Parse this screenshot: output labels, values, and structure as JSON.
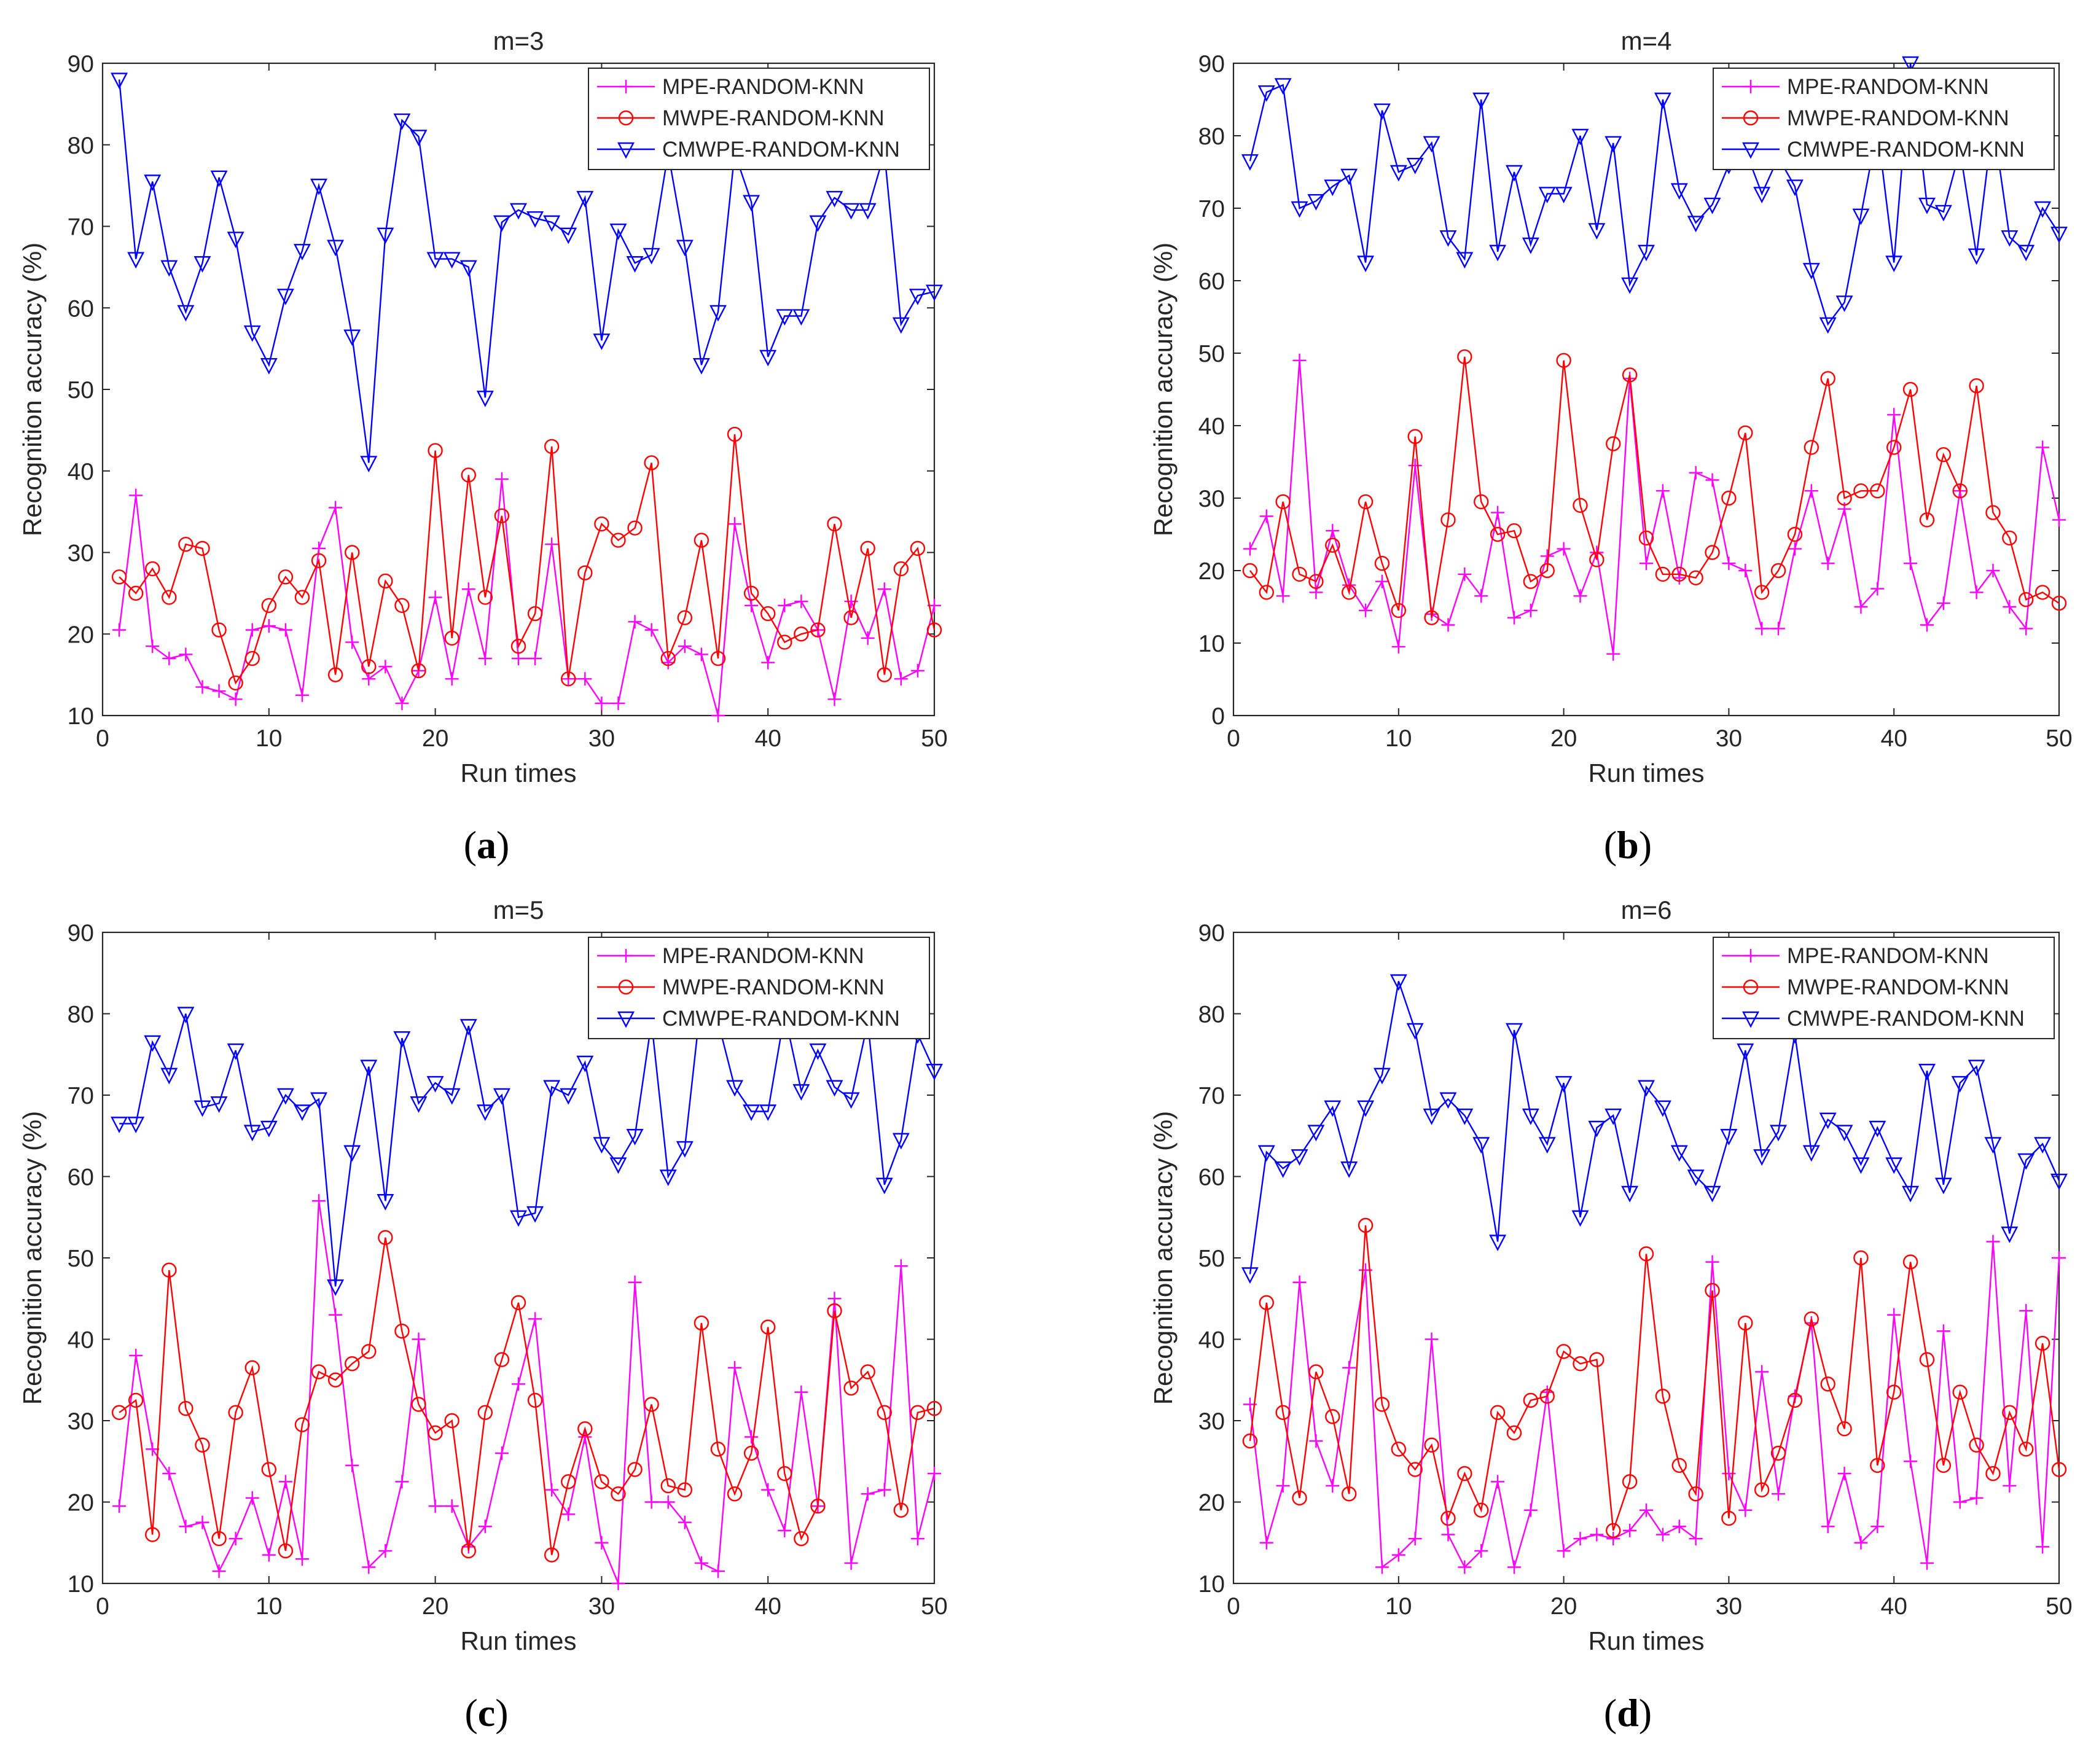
{
  "colors": {
    "MPE": "#ff00ff",
    "MWPE": "#ff0000",
    "CMWPE": "#0000ff",
    "axis": "#262626"
  },
  "chart_data": [
    {
      "type": "line",
      "title": "m=3",
      "caption": "a",
      "xlabel": "Run times",
      "ylabel": "Recognition accuracy (%)",
      "xlim": [
        0,
        50
      ],
      "ylim": [
        10,
        90
      ],
      "xticks": [
        "0",
        "10",
        "20",
        "30",
        "40",
        "50"
      ],
      "yticks": [
        "10",
        "20",
        "30",
        "40",
        "50",
        "60",
        "70",
        "80",
        "90"
      ],
      "legend": "top-right",
      "x": [
        1,
        2,
        3,
        4,
        5,
        6,
        7,
        8,
        9,
        10,
        11,
        12,
        13,
        14,
        15,
        16,
        17,
        18,
        19,
        20,
        21,
        22,
        23,
        24,
        25,
        26,
        27,
        28,
        29,
        30,
        31,
        32,
        33,
        34,
        35,
        36,
        37,
        38,
        39,
        40,
        41,
        42,
        43,
        44,
        45,
        46,
        47,
        48,
        49,
        50
      ],
      "series": [
        {
          "name": "MPE-RANDOM-KNN",
          "marker": "plus",
          "color": "#ff00ff",
          "values": [
            20.5,
            37,
            18.5,
            17,
            17.5,
            13.5,
            13,
            12,
            20.5,
            21,
            20.5,
            12.5,
            30.5,
            35.5,
            19,
            14.5,
            16,
            11.5,
            15.5,
            24.5,
            14.5,
            25.5,
            17,
            39,
            17,
            17,
            31,
            14.5,
            14.5,
            11.5,
            11.5,
            21.5,
            20.5,
            16.5,
            18.5,
            17.5,
            10,
            33.5,
            23.5,
            16.5,
            23.5,
            24,
            20.5,
            12,
            24,
            19.5,
            25.5,
            14.5,
            15.5,
            23.5
          ]
        },
        {
          "name": "MWPE-RANDOM-KNN",
          "marker": "circle",
          "color": "#ff0000",
          "values": [
            27,
            25,
            28,
            24.5,
            31,
            30.5,
            20.5,
            14,
            17,
            23.5,
            27,
            24.5,
            29,
            15,
            30,
            16,
            26.5,
            23.5,
            15.5,
            42.5,
            19.5,
            39.5,
            24.5,
            34.5,
            18.5,
            22.5,
            43,
            14.5,
            27.5,
            33.5,
            31.5,
            33,
            41,
            17,
            22,
            31.5,
            17,
            44.5,
            25,
            22.5,
            19,
            20,
            20.5,
            33.5,
            22,
            30.5,
            15,
            28,
            30.5,
            20.5
          ]
        },
        {
          "name": "CMWPE-RANDOM-KNN",
          "marker": "triangle-down",
          "color": "#0000ff",
          "values": [
            88,
            66,
            75.5,
            65,
            59.5,
            65.5,
            76,
            68.5,
            57,
            53,
            61.5,
            67,
            75,
            67.5,
            56.5,
            41,
            69,
            83,
            81,
            66,
            66,
            65,
            49,
            70.5,
            72,
            71,
            70.5,
            69,
            73.5,
            56,
            69.5,
            65.5,
            66.5,
            79,
            67.5,
            53,
            59.5,
            79,
            73,
            54,
            59,
            59,
            70.5,
            73.5,
            72,
            72,
            79,
            58,
            61.5,
            62
          ]
        }
      ]
    },
    {
      "type": "line",
      "title": "m=4",
      "caption": "b",
      "xlabel": "Run times",
      "ylabel": "Recognition accuracy (%)",
      "xlim": [
        0,
        50
      ],
      "ylim": [
        0,
        90
      ],
      "xticks": [
        "0",
        "10",
        "20",
        "30",
        "40",
        "50"
      ],
      "yticks": [
        "0",
        "10",
        "20",
        "30",
        "40",
        "50",
        "60",
        "70",
        "80",
        "90"
      ],
      "legend": "top-right",
      "x": [
        1,
        2,
        3,
        4,
        5,
        6,
        7,
        8,
        9,
        10,
        11,
        12,
        13,
        14,
        15,
        16,
        17,
        18,
        19,
        20,
        21,
        22,
        23,
        24,
        25,
        26,
        27,
        28,
        29,
        30,
        31,
        32,
        33,
        34,
        35,
        36,
        37,
        38,
        39,
        40,
        41,
        42,
        43,
        44,
        45,
        46,
        47,
        48,
        49,
        50
      ],
      "series": [
        {
          "name": "MPE-RANDOM-KNN",
          "marker": "plus",
          "color": "#ff00ff",
          "values": [
            23,
            27.5,
            16.5,
            49,
            17,
            25.5,
            18,
            14.5,
            18.5,
            9.5,
            34.5,
            14,
            12.5,
            19.5,
            16.5,
            28,
            13.5,
            14.5,
            22,
            23,
            16.5,
            22.5,
            8.5,
            46.5,
            21,
            31,
            19,
            33.5,
            32.5,
            21,
            20,
            12,
            12,
            23,
            31,
            21,
            28.5,
            15,
            17.5,
            41.5,
            21,
            12.5,
            15.5,
            31,
            17,
            20,
            15,
            12,
            37,
            27
          ]
        },
        {
          "name": "MWPE-RANDOM-KNN",
          "marker": "circle",
          "color": "#ff0000",
          "values": [
            20,
            17,
            29.5,
            19.5,
            18.5,
            23.5,
            17,
            29.5,
            21,
            14.5,
            38.5,
            13.5,
            27,
            49.5,
            29.5,
            25,
            25.5,
            18.5,
            20,
            49,
            29,
            21.5,
            37.5,
            47,
            24.5,
            19.5,
            19.5,
            19,
            22.5,
            30,
            39,
            17,
            20,
            25,
            37,
            46.5,
            30,
            31,
            31,
            37,
            45,
            27,
            36,
            31,
            45.5,
            28,
            24.5,
            16,
            17,
            15.5
          ]
        },
        {
          "name": "CMWPE-RANDOM-KNN",
          "marker": "triangle-down",
          "color": "#0000ff",
          "values": [
            76.5,
            86,
            87,
            70,
            71,
            73,
            74.5,
            62.5,
            83.5,
            75,
            76,
            79,
            66,
            63,
            85,
            64,
            75,
            65,
            72,
            72,
            80,
            67,
            79,
            59.5,
            64,
            85,
            72.5,
            68,
            70.5,
            76,
            78,
            72,
            77,
            73,
            61.5,
            54,
            57,
            69,
            81,
            62.5,
            90,
            70.5,
            69.5,
            78,
            63.5,
            82,
            66,
            64,
            70,
            66.5
          ]
        }
      ]
    },
    {
      "type": "line",
      "title": "m=5",
      "caption": "c",
      "xlabel": "Run times",
      "ylabel": "Recognition accuracy (%)",
      "xlim": [
        0,
        50
      ],
      "ylim": [
        10,
        90
      ],
      "xticks": [
        "0",
        "10",
        "20",
        "30",
        "40",
        "50"
      ],
      "yticks": [
        "10",
        "20",
        "30",
        "40",
        "50",
        "60",
        "70",
        "80",
        "90"
      ],
      "legend": "top-right",
      "x": [
        1,
        2,
        3,
        4,
        5,
        6,
        7,
        8,
        9,
        10,
        11,
        12,
        13,
        14,
        15,
        16,
        17,
        18,
        19,
        20,
        21,
        22,
        23,
        24,
        25,
        26,
        27,
        28,
        29,
        30,
        31,
        32,
        33,
        34,
        35,
        36,
        37,
        38,
        39,
        40,
        41,
        42,
        43,
        44,
        45,
        46,
        47,
        48,
        49,
        50
      ],
      "series": [
        {
          "name": "MPE-RANDOM-KNN",
          "marker": "plus",
          "color": "#ff00ff",
          "values": [
            19.5,
            38,
            26.5,
            23.5,
            17,
            17.5,
            11.5,
            15.5,
            20.5,
            13.5,
            22.5,
            13,
            57,
            43,
            24.5,
            12,
            14,
            22.5,
            40,
            19.5,
            19.5,
            14.5,
            17,
            26,
            34.5,
            42.5,
            21.5,
            18.5,
            28,
            15,
            10,
            47,
            20,
            20,
            17.5,
            12.5,
            11.5,
            36.5,
            28,
            21.5,
            16.5,
            33.5,
            19.5,
            45,
            12.5,
            21,
            21.5,
            49,
            15.5,
            23.5
          ]
        },
        {
          "name": "MWPE-RANDOM-KNN",
          "marker": "circle",
          "color": "#ff0000",
          "values": [
            31,
            32.5,
            16,
            48.5,
            31.5,
            27,
            15.5,
            31,
            36.5,
            24,
            14,
            29.5,
            36,
            35,
            37,
            38.5,
            52.5,
            41,
            32,
            28.5,
            30,
            14,
            31,
            37.5,
            44.5,
            32.5,
            13.5,
            22.5,
            29,
            22.5,
            21,
            24,
            32,
            22,
            21.5,
            42,
            26.5,
            21,
            26,
            41.5,
            23.5,
            15.5,
            19.5,
            43.5,
            34,
            36,
            31,
            19,
            31,
            31.5
          ]
        },
        {
          "name": "CMWPE-RANDOM-KNN",
          "marker": "triangle-down",
          "color": "#0000ff",
          "values": [
            66.5,
            66.5,
            76.5,
            72.5,
            80,
            68.5,
            69,
            75.5,
            65.5,
            66,
            70,
            68,
            69.5,
            46.5,
            63,
            73.5,
            57,
            77,
            69,
            71.5,
            70,
            78.5,
            68,
            70,
            55,
            55.5,
            71,
            70,
            74,
            64,
            61.5,
            65,
            79,
            60,
            63.5,
            82,
            79,
            71,
            68,
            68,
            80,
            70.5,
            75.5,
            71,
            69.5,
            79,
            59,
            64.5,
            77.5,
            73
          ]
        }
      ]
    },
    {
      "type": "line",
      "title": "m=6",
      "caption": "d",
      "xlabel": "Run times",
      "ylabel": "Recognition accuracy (%)",
      "xlim": [
        0,
        50
      ],
      "ylim": [
        10,
        90
      ],
      "xticks": [
        "0",
        "10",
        "20",
        "30",
        "40",
        "50"
      ],
      "yticks": [
        "10",
        "20",
        "30",
        "40",
        "50",
        "60",
        "70",
        "80",
        "90"
      ],
      "legend": "top-right",
      "x": [
        1,
        2,
        3,
        4,
        5,
        6,
        7,
        8,
        9,
        10,
        11,
        12,
        13,
        14,
        15,
        16,
        17,
        18,
        19,
        20,
        21,
        22,
        23,
        24,
        25,
        26,
        27,
        28,
        29,
        30,
        31,
        32,
        33,
        34,
        35,
        36,
        37,
        38,
        39,
        40,
        41,
        42,
        43,
        44,
        45,
        46,
        47,
        48,
        49,
        50
      ],
      "series": [
        {
          "name": "MPE-RANDOM-KNN",
          "marker": "plus",
          "color": "#ff00ff",
          "values": [
            32,
            15,
            22,
            47,
            27.5,
            22,
            36.5,
            48.5,
            12,
            13.5,
            15.5,
            40,
            16,
            12,
            14,
            22.5,
            12,
            19,
            33.5,
            14,
            15.5,
            16,
            15.5,
            16.5,
            19,
            16,
            17,
            15.5,
            49.5,
            23.5,
            19,
            36,
            21,
            33,
            42,
            17,
            23.5,
            15,
            17,
            43,
            25,
            12.5,
            41,
            20,
            20.5,
            52,
            22,
            43.5,
            14.5,
            50
          ]
        },
        {
          "name": "MWPE-RANDOM-KNN",
          "marker": "circle",
          "color": "#ff0000",
          "values": [
            27.5,
            44.5,
            31,
            20.5,
            36,
            30.5,
            21,
            54,
            32,
            26.5,
            24,
            27,
            18,
            23.5,
            19,
            31,
            28.5,
            32.5,
            33,
            38.5,
            37,
            37.5,
            16.5,
            22.5,
            50.5,
            33,
            24.5,
            21,
            46,
            18,
            42,
            21.5,
            26,
            32.5,
            42.5,
            34.5,
            29,
            50,
            24.5,
            33.5,
            49.5,
            37.5,
            24.5,
            33.5,
            27,
            23.5,
            31,
            26.5,
            39.5,
            24
          ]
        },
        {
          "name": "CMWPE-RANDOM-KNN",
          "marker": "triangle-down",
          "color": "#0000ff",
          "values": [
            48,
            63,
            61,
            62.5,
            65.5,
            68.5,
            61,
            68.5,
            72.5,
            84,
            78,
            67.5,
            69.5,
            67.5,
            64,
            52,
            78,
            67.5,
            64,
            71.5,
            55,
            66,
            67.5,
            58,
            71,
            68.5,
            63,
            60,
            58,
            65,
            75.5,
            62.5,
            65.5,
            77.5,
            63,
            67,
            65.5,
            61.5,
            66,
            61.5,
            58,
            73,
            59,
            71.5,
            73.5,
            64,
            53,
            62,
            64,
            59.5
          ]
        }
      ]
    }
  ]
}
